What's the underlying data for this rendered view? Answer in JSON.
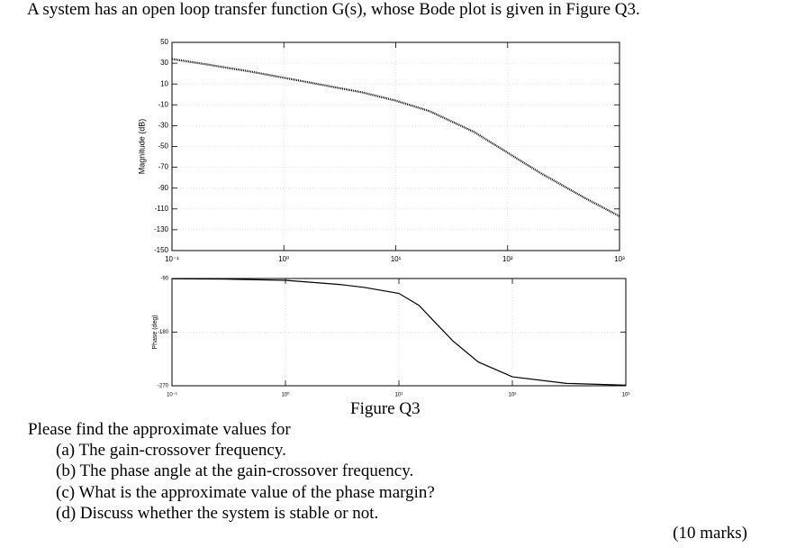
{
  "question": "A system has an open loop transfer function G(s), whose Bode plot is given in Figure Q3.",
  "chart_data": [
    {
      "type": "line",
      "ylabel": "Magnitude (dB)",
      "xscale": "log",
      "grid": true,
      "color": "#000000",
      "line_style": "dotted",
      "x": [
        0.1,
        0.2,
        0.5,
        1,
        2,
        5,
        10,
        20,
        50,
        100,
        200,
        500,
        1000
      ],
      "values": [
        34,
        29,
        22,
        16,
        10,
        2,
        -6,
        -16,
        -36,
        -56,
        -76,
        -100,
        -117
      ],
      "xlim": [
        0.1,
        1000
      ],
      "xticks": [
        {
          "value": 0.1,
          "label": "10⁻¹"
        },
        {
          "value": 1,
          "label": "10⁰"
        },
        {
          "value": 10,
          "label": "10¹"
        },
        {
          "value": 100,
          "label": "10²"
        },
        {
          "value": 1000,
          "label": "10³"
        }
      ],
      "ylim": [
        -150,
        50
      ],
      "yticks": [
        -150,
        -130,
        -110,
        -90,
        -70,
        -50,
        -30,
        -10,
        10,
        30,
        50
      ]
    },
    {
      "type": "line",
      "ylabel": "Phase (deg)",
      "xscale": "log",
      "grid": true,
      "color": "#000000",
      "line_style": "solid",
      "x": [
        0.1,
        0.3,
        1,
        3,
        5,
        10,
        15,
        20,
        30,
        50,
        100,
        300,
        1000
      ],
      "values": [
        -90.5,
        -91,
        -93,
        -100,
        -105,
        -115,
        -135,
        -160,
        -195,
        -230,
        -255,
        -266,
        -269
      ],
      "xlim": [
        0.1,
        1000
      ],
      "xticks": [
        {
          "value": 0.1,
          "label": "10⁻¹"
        },
        {
          "value": 1,
          "label": "10⁰"
        },
        {
          "value": 10,
          "label": "10¹"
        },
        {
          "value": 100,
          "label": "10²"
        },
        {
          "value": 1000,
          "label": "10³"
        }
      ],
      "ylim": [
        -270,
        -90
      ],
      "yticks": [
        -270,
        -180,
        -90
      ]
    }
  ],
  "caption": "Figure Q3",
  "prompt": "Please find the approximate values for",
  "items": [
    "(a) The gain-crossover frequency.",
    "(b) The phase angle at the gain-crossover frequency.",
    "(c) What is the approximate value of the phase margin?",
    "(d) Discuss whether the system is stable or not."
  ],
  "marks": "(10 marks)"
}
